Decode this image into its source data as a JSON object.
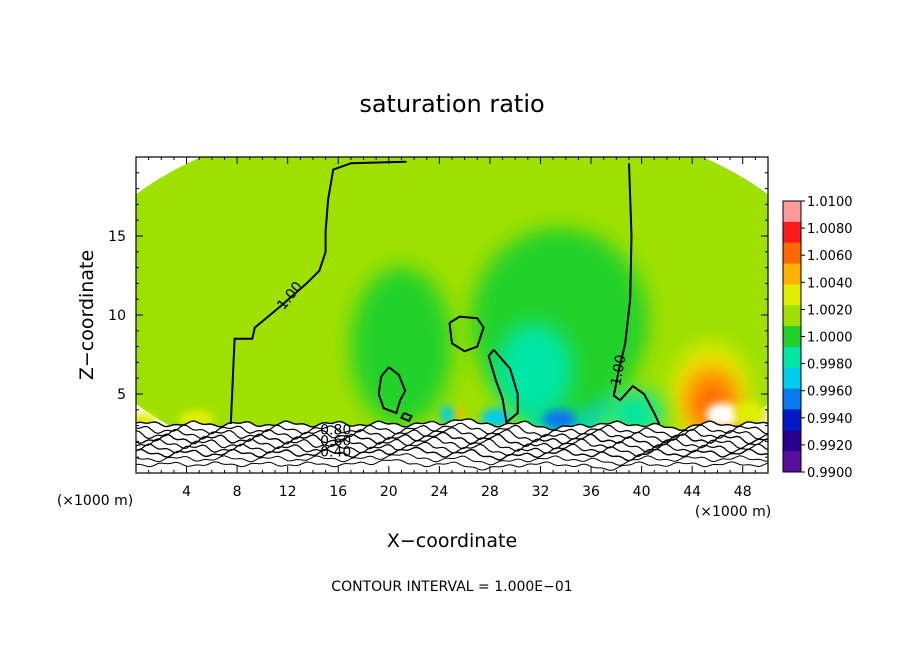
{
  "chart_data": {
    "type": "heatmap",
    "title": "saturation ratio",
    "xlabel": "X−coordinate",
    "ylabel": "Z−coordinate",
    "x_unit": "(×1000 m)",
    "xlim": [
      0,
      50
    ],
    "ylim": [
      0,
      20
    ],
    "x_ticks": [
      4,
      8,
      12,
      16,
      20,
      24,
      28,
      32,
      36,
      40,
      44,
      48
    ],
    "y_ticks": [
      5,
      10,
      15
    ],
    "footer": "CONTOUR INTERVAL = 1.000E−01",
    "colorbar": {
      "levels": [
        "1.0100",
        "1.0080",
        "1.0060",
        "1.0040",
        "1.0020",
        "1.0000",
        "0.9980",
        "0.9960",
        "0.9940",
        "0.9920",
        "0.9900"
      ],
      "colors": [
        "#ff9a9a",
        "#ff1a1a",
        "#ff6a00",
        "#ffb000",
        "#e2ee00",
        "#9ee000",
        "#22d22a",
        "#00e6a6",
        "#00ccec",
        "#0a78f0",
        "#0018c8",
        "#2a0090",
        "#5a0ea0"
      ]
    },
    "contour_labels": [
      "1.00",
      "1.00",
      "0.80",
      "0.60",
      "0.40"
    ],
    "contour_label_pos": [
      [
        12.2,
        11.2
      ],
      [
        38.2,
        6.5
      ],
      [
        15.8,
        2.7
      ],
      [
        15.8,
        2.0
      ],
      [
        15.8,
        1.3
      ]
    ],
    "regions": [
      {
        "desc": "background",
        "cx": 25,
        "cy": 11,
        "rx": 30,
        "ry": 12,
        "value": 1.0
      },
      {
        "cx": 34,
        "cy": 4.4,
        "rx": 3.2,
        "ry": 2.6,
        "value": 0.9965
      },
      {
        "cx": 32.5,
        "cy": 4.4,
        "rx": 1.4,
        "ry": 1.3,
        "value": 0.9945
      },
      {
        "cx": 35.5,
        "cy": 4.8,
        "rx": 1.8,
        "ry": 1.6,
        "value": 0.9945
      },
      {
        "cx": 33.5,
        "cy": 3.4,
        "rx": 1.3,
        "ry": 0.6,
        "value": 0.9925
      },
      {
        "cx": 33.5,
        "cy": 9.5,
        "rx": 7,
        "ry": 6,
        "value": 0.9985
      },
      {
        "cx": 31.5,
        "cy": 6.5,
        "rx": 3,
        "ry": 3,
        "value": 0.9975
      },
      {
        "cx": 45.5,
        "cy": 5.6,
        "rx": 4.5,
        "ry": 4.5,
        "value": 1.0012
      },
      {
        "cx": 45.5,
        "cy": 5.0,
        "rx": 3.1,
        "ry": 3.2,
        "value": 1.0032
      },
      {
        "cx": 45.5,
        "cy": 4.7,
        "rx": 2.3,
        "ry": 2.3,
        "value": 1.0052
      },
      {
        "cx": 45.6,
        "cy": 4.4,
        "rx": 1.6,
        "ry": 1.6,
        "value": 1.0068
      },
      {
        "cx": 46.4,
        "cy": 3.7,
        "rx": 1.3,
        "ry": 0.75,
        "value": 1.011
      },
      {
        "cx": 4.8,
        "cy": 3.4,
        "rx": 1.4,
        "ry": 0.6,
        "value": 1.0038
      },
      {
        "cx": 0.6,
        "cy": 3.3,
        "rx": 1.0,
        "ry": 0.5,
        "value": 1.0034
      },
      {
        "cx": 25.6,
        "cy": 3.8,
        "rx": 0.4,
        "ry": 0.35,
        "value": 1.0045
      },
      {
        "cx": 24.6,
        "cy": 3.7,
        "rx": 0.5,
        "ry": 0.6,
        "value": 0.995
      },
      {
        "cx": 28.5,
        "cy": 3.5,
        "rx": 1.2,
        "ry": 0.6,
        "value": 0.9955
      },
      {
        "cx": 39.5,
        "cy": 3.8,
        "rx": 2.2,
        "ry": 1.4,
        "value": 0.9972
      },
      {
        "cx": 21,
        "cy": 8,
        "rx": 4,
        "ry": 5,
        "value": 0.9988
      },
      {
        "cx": 6,
        "cy": 12,
        "rx": 7,
        "ry": 6,
        "value": 1.0012
      },
      {
        "cx": 48.5,
        "cy": 3.8,
        "rx": 1.2,
        "ry": 0.7,
        "value": 1.0034
      }
    ],
    "contours": [
      {
        "label": "1.00",
        "points": [
          [
            7.5,
            3.1
          ],
          [
            7.8,
            8.5
          ],
          [
            9.2,
            8.5
          ],
          [
            9.4,
            9.2
          ],
          [
            11.5,
            10.6
          ],
          [
            13.5,
            12.0
          ],
          [
            14.5,
            12.8
          ],
          [
            15.0,
            14.0
          ],
          [
            15.0,
            15.3
          ],
          [
            15.2,
            17.3
          ],
          [
            15.6,
            19.2
          ],
          [
            17.0,
            19.6
          ],
          [
            21.4,
            19.7
          ]
        ]
      },
      {
        "label": "1.00",
        "points": [
          [
            39.0,
            19.6
          ],
          [
            39.2,
            15.0
          ],
          [
            39.1,
            11.0
          ],
          [
            38.7,
            8.2
          ],
          [
            38.2,
            6.5
          ],
          [
            37.8,
            4.9
          ],
          [
            38.3,
            4.6
          ],
          [
            39.3,
            5.5
          ],
          [
            40.2,
            5.0
          ],
          [
            41.0,
            3.8
          ],
          [
            41.4,
            3.1
          ]
        ]
      },
      {
        "points": [
          [
            24.8,
            9.5
          ],
          [
            25.6,
            9.9
          ],
          [
            27.0,
            9.8
          ],
          [
            27.5,
            9.2
          ],
          [
            27.0,
            8.0
          ],
          [
            26.0,
            7.7
          ],
          [
            25.0,
            8.2
          ],
          [
            24.8,
            9.5
          ]
        ]
      },
      {
        "points": [
          [
            20.0,
            6.7
          ],
          [
            20.8,
            6.2
          ],
          [
            21.3,
            5.2
          ],
          [
            20.9,
            4.6
          ],
          [
            20.6,
            3.8
          ],
          [
            19.6,
            4.1
          ],
          [
            19.2,
            5.0
          ],
          [
            19.4,
            6.1
          ],
          [
            20.0,
            6.7
          ]
        ]
      },
      {
        "points": [
          [
            28.3,
            7.8
          ],
          [
            29.6,
            6.6
          ],
          [
            30.2,
            5.0
          ],
          [
            30.2,
            3.8
          ],
          [
            29.3,
            3.2
          ],
          [
            29.0,
            4.7
          ],
          [
            28.5,
            5.8
          ],
          [
            27.9,
            7.4
          ],
          [
            28.3,
            7.8
          ]
        ]
      },
      {
        "points": [
          [
            21.2,
            3.8
          ],
          [
            21.8,
            3.6
          ],
          [
            21.6,
            3.3
          ],
          [
            21.0,
            3.5
          ],
          [
            21.2,
            3.8
          ]
        ]
      }
    ],
    "terrain_lines": [
      {
        "base": 3.1,
        "amp": 0.12,
        "width": 1.4
      },
      {
        "base": 2.75,
        "amp": 0.18,
        "width": 1.2
      },
      {
        "base": 2.45,
        "amp": 0.2,
        "width": 1.2
      },
      {
        "base": 2.15,
        "amp": 0.2,
        "width": 1.4
      },
      {
        "base": 1.85,
        "amp": 0.2,
        "width": 1.2
      },
      {
        "base": 1.55,
        "amp": 0.18,
        "width": 1.2
      },
      {
        "base": 1.25,
        "amp": 0.16,
        "width": 1.4
      },
      {
        "base": 0.9,
        "amp": 0.12,
        "width": 1.0
      },
      {
        "base": 0.55,
        "amp": 0.1,
        "width": 1.0
      }
    ]
  }
}
